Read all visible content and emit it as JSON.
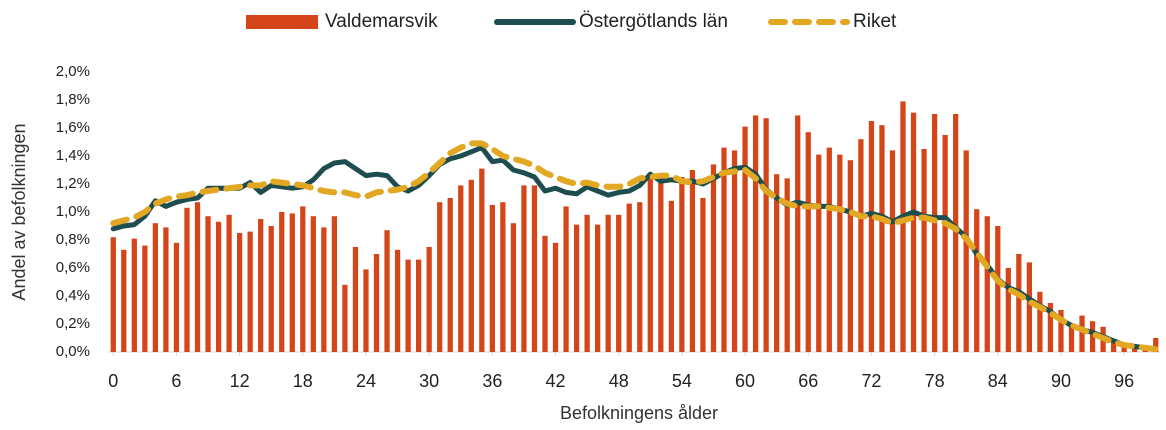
{
  "chart_data": {
    "type": "bar",
    "xlabel": "Befolkningens ålder",
    "ylabel": "Andel av befolkningen",
    "x": [
      0,
      1,
      2,
      3,
      4,
      5,
      6,
      7,
      8,
      9,
      10,
      11,
      12,
      13,
      14,
      15,
      16,
      17,
      18,
      19,
      20,
      21,
      22,
      23,
      24,
      25,
      26,
      27,
      28,
      29,
      30,
      31,
      32,
      33,
      34,
      35,
      36,
      37,
      38,
      39,
      40,
      41,
      42,
      43,
      44,
      45,
      46,
      47,
      48,
      49,
      50,
      51,
      52,
      53,
      54,
      55,
      56,
      57,
      58,
      59,
      60,
      61,
      62,
      63,
      64,
      65,
      66,
      67,
      68,
      69,
      70,
      71,
      72,
      73,
      74,
      75,
      76,
      77,
      78,
      79,
      80,
      81,
      82,
      83,
      84,
      85,
      86,
      87,
      88,
      89,
      90,
      91,
      92,
      93,
      94,
      95,
      96,
      97,
      98,
      99
    ],
    "xlim": [
      -0.5,
      99.5
    ],
    "xticks": [
      0,
      6,
      12,
      18,
      24,
      30,
      36,
      42,
      48,
      54,
      60,
      66,
      72,
      78,
      84,
      90,
      96
    ],
    "ylim": [
      0,
      2
    ],
    "yticks": [
      {
        "value": 0,
        "label": "0,0%"
      },
      {
        "value": 0.2,
        "label": "0,2%"
      },
      {
        "value": 0.4,
        "label": "0,4%"
      },
      {
        "value": 0.6,
        "label": "0,6%"
      },
      {
        "value": 0.8,
        "label": "0,8%"
      },
      {
        "value": 1.0,
        "label": "1,0%"
      },
      {
        "value": 1.2,
        "label": "1,2%"
      },
      {
        "value": 1.4,
        "label": "1,4%"
      },
      {
        "value": 1.6,
        "label": "1,6%"
      },
      {
        "value": 1.8,
        "label": "1,8%"
      },
      {
        "value": 2.0,
        "label": "2,0%"
      }
    ],
    "grid": false,
    "legend": "top",
    "series": [
      {
        "name": "Valdemarsvik",
        "type": "bar",
        "color": "#d4461a",
        "values": [
          0.82,
          0.73,
          0.81,
          0.76,
          0.92,
          0.89,
          0.78,
          1.03,
          1.07,
          0.97,
          0.93,
          0.98,
          0.85,
          0.86,
          0.95,
          0.9,
          1.0,
          0.99,
          1.04,
          0.97,
          0.89,
          0.97,
          0.48,
          0.75,
          0.59,
          0.7,
          0.87,
          0.73,
          0.66,
          0.66,
          0.75,
          1.07,
          1.1,
          1.19,
          1.23,
          1.31,
          1.05,
          1.07,
          0.92,
          1.19,
          1.19,
          0.83,
          0.78,
          1.04,
          0.91,
          0.98,
          0.91,
          0.98,
          0.98,
          1.06,
          1.07,
          1.26,
          1.23,
          1.08,
          1.25,
          1.3,
          1.1,
          1.34,
          1.46,
          1.44,
          1.61,
          1.69,
          1.67,
          1.27,
          1.24,
          1.69,
          1.57,
          1.41,
          1.46,
          1.41,
          1.37,
          1.52,
          1.65,
          1.62,
          1.44,
          1.79,
          1.71,
          1.45,
          1.7,
          1.55,
          1.7,
          1.44,
          1.02,
          0.97,
          0.9,
          0.6,
          0.7,
          0.64,
          0.43,
          0.35,
          0.3,
          0.2,
          0.26,
          0.22,
          0.18,
          0.08,
          0.06,
          0.04,
          0.03,
          0.1
        ]
      },
      {
        "name": "Östergötlands län",
        "type": "line",
        "color": "#1d4d4f",
        "dashed": false,
        "values": [
          0.88,
          0.9,
          0.91,
          0.97,
          1.08,
          1.04,
          1.07,
          1.09,
          1.1,
          1.17,
          1.17,
          1.17,
          1.17,
          1.21,
          1.14,
          1.19,
          1.18,
          1.17,
          1.18,
          1.23,
          1.31,
          1.35,
          1.36,
          1.31,
          1.26,
          1.27,
          1.26,
          1.18,
          1.15,
          1.19,
          1.26,
          1.34,
          1.38,
          1.4,
          1.43,
          1.46,
          1.36,
          1.37,
          1.3,
          1.28,
          1.25,
          1.15,
          1.17,
          1.14,
          1.13,
          1.18,
          1.15,
          1.12,
          1.14,
          1.15,
          1.19,
          1.27,
          1.22,
          1.23,
          1.22,
          1.22,
          1.2,
          1.24,
          1.28,
          1.31,
          1.32,
          1.27,
          1.16,
          1.1,
          1.05,
          1.07,
          1.05,
          1.04,
          1.04,
          1.02,
          1.0,
          0.97,
          0.99,
          0.97,
          0.93,
          0.97,
          1.0,
          0.97,
          0.96,
          0.96,
          0.89,
          0.82,
          0.7,
          0.62,
          0.52,
          0.46,
          0.43,
          0.38,
          0.33,
          0.29,
          0.23,
          0.19,
          0.16,
          0.14,
          0.11,
          0.08,
          0.05,
          0.04,
          0.03,
          0.02
        ]
      },
      {
        "name": "Riket",
        "type": "line",
        "color": "#e3a823",
        "dashed": true,
        "values": [
          0.92,
          0.94,
          0.96,
          1.0,
          1.06,
          1.09,
          1.11,
          1.12,
          1.14,
          1.15,
          1.16,
          1.17,
          1.18,
          1.19,
          1.19,
          1.22,
          1.21,
          1.2,
          1.19,
          1.17,
          1.15,
          1.14,
          1.14,
          1.12,
          1.11,
          1.14,
          1.15,
          1.16,
          1.18,
          1.22,
          1.28,
          1.35,
          1.42,
          1.46,
          1.49,
          1.49,
          1.45,
          1.4,
          1.38,
          1.36,
          1.33,
          1.28,
          1.25,
          1.22,
          1.2,
          1.21,
          1.19,
          1.18,
          1.18,
          1.2,
          1.24,
          1.25,
          1.26,
          1.26,
          1.22,
          1.21,
          1.22,
          1.25,
          1.28,
          1.29,
          1.3,
          1.24,
          1.15,
          1.1,
          1.06,
          1.04,
          1.04,
          1.04,
          1.03,
          1.02,
          1.0,
          0.97,
          0.97,
          0.95,
          0.92,
          0.94,
          0.96,
          0.96,
          0.94,
          0.92,
          0.88,
          0.81,
          0.71,
          0.61,
          0.51,
          0.45,
          0.41,
          0.36,
          0.32,
          0.28,
          0.23,
          0.19,
          0.16,
          0.13,
          0.1,
          0.07,
          0.05,
          0.04,
          0.03,
          0.02
        ]
      }
    ]
  }
}
